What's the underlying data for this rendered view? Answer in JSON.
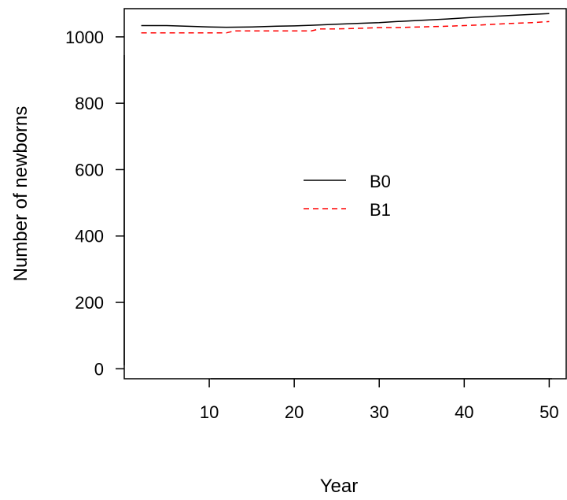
{
  "chart_data": {
    "type": "line",
    "title": "",
    "xlabel": "Year",
    "ylabel": "Number of newborns",
    "xlim": [
      0,
      52
    ],
    "ylim": [
      -30,
      1085
    ],
    "x_ticks": [
      10,
      20,
      30,
      40,
      50
    ],
    "y_ticks": [
      0,
      200,
      400,
      600,
      800,
      1000
    ],
    "x_tick_labels": [
      "10",
      "20",
      "30",
      "40",
      "50"
    ],
    "y_tick_labels": [
      "0",
      "200",
      "400",
      "600",
      "800",
      "1000"
    ],
    "grid": false,
    "legend_position": "center",
    "series": [
      {
        "name": "B0",
        "color": "#000000",
        "dash": "solid",
        "x": [
          2,
          5,
          10,
          12,
          15,
          18,
          20,
          22,
          25,
          28,
          30,
          32,
          35,
          38,
          40,
          42,
          45,
          48,
          50
        ],
        "y": [
          1034,
          1034,
          1030,
          1029,
          1030,
          1032,
          1033,
          1035,
          1038,
          1041,
          1043,
          1046,
          1050,
          1054,
          1057,
          1060,
          1064,
          1068,
          1070
        ]
      },
      {
        "name": "B1",
        "color": "#ff0000",
        "dash": "dashed",
        "x": [
          2,
          5,
          10,
          12,
          13,
          15,
          20,
          22,
          23,
          25,
          28,
          30,
          32,
          35,
          38,
          40,
          42,
          45,
          48,
          50
        ],
        "y": [
          1012,
          1012,
          1012,
          1012,
          1018,
          1018,
          1018,
          1018,
          1024,
          1024,
          1026,
          1028,
          1028,
          1030,
          1032,
          1034,
          1036,
          1040,
          1043,
          1046
        ]
      }
    ]
  }
}
